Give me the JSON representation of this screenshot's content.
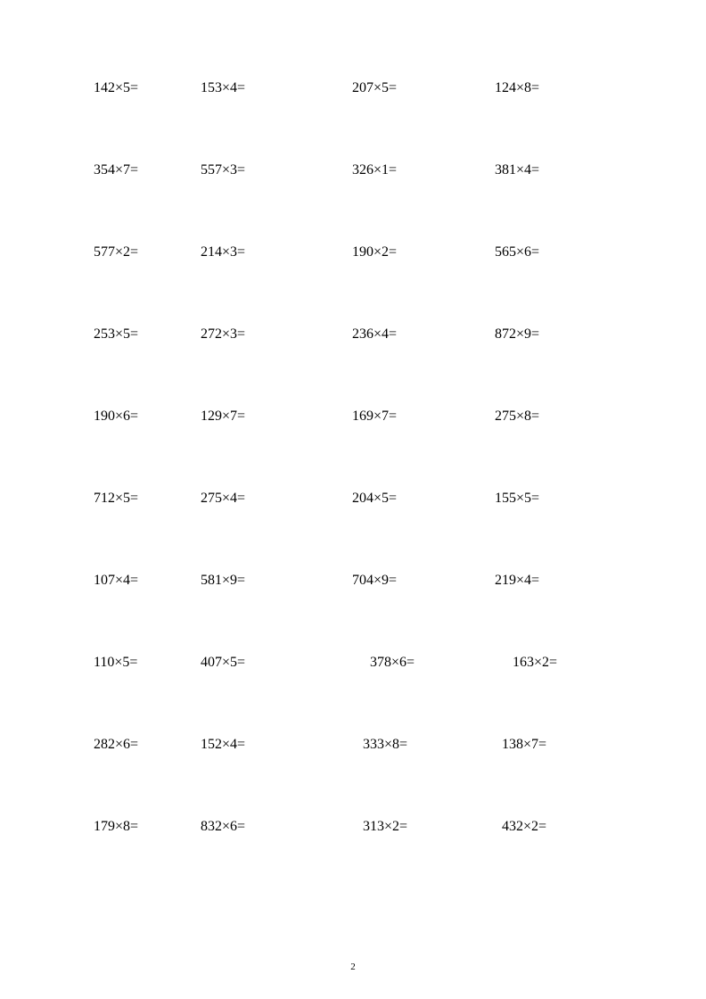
{
  "rows": [
    {
      "cells": [
        "142×5=",
        "153×4=",
        "207×5=",
        "124×8="
      ],
      "indent": ""
    },
    {
      "cells": [
        "354×7=",
        "557×3=",
        "326×1=",
        "381×4="
      ],
      "indent": ""
    },
    {
      "cells": [
        "577×2=",
        "214×3=",
        "190×2=",
        "565×6="
      ],
      "indent": ""
    },
    {
      "cells": [
        "253×5=",
        "272×3=",
        "236×4=",
        "872×9="
      ],
      "indent": ""
    },
    {
      "cells": [
        "190×6=",
        "129×7=",
        "169×7=",
        "275×8="
      ],
      "indent": ""
    },
    {
      "cells": [
        "712×5=",
        "275×4=",
        "204×5=",
        "155×5="
      ],
      "indent": ""
    },
    {
      "cells": [
        "107×4=",
        "581×9=",
        "704×9=",
        "219×4="
      ],
      "indent": ""
    },
    {
      "cells": [
        "110×5=",
        "407×5=",
        "378×6=",
        "163×2="
      ],
      "indent": "row-indent"
    },
    {
      "cells": [
        "282×6=",
        "152×4=",
        "333×8=",
        "138×7="
      ],
      "indent": "row-indent2"
    },
    {
      "cells": [
        "179×8=",
        "832×6=",
        "313×2=",
        "432×2="
      ],
      "indent": "row-indent2"
    }
  ],
  "page_number": "2"
}
